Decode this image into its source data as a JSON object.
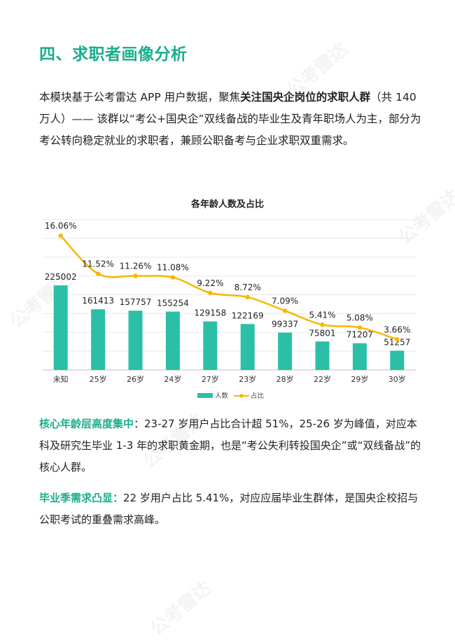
{
  "heading": "四、求职者画像分析",
  "intro": {
    "part1": "本模块基于公考雷达 APP 用户数据，聚焦",
    "bold": "关注国央企岗位的求职人群",
    "part2": "（共 140 万人）—— 该群以“考公+国央企”双线备战的毕业生及青年职场人为主，部分为考公转向稳定就业的求职者，兼顾公职备考与企业求职双重需求。"
  },
  "watermark": "公考雷达",
  "chart_data": {
    "type": "bar",
    "title": "各年龄人数及占比",
    "categories": [
      "未知",
      "25岁",
      "26岁",
      "24岁",
      "27岁",
      "23岁",
      "28岁",
      "22岁",
      "29岁",
      "30岁"
    ],
    "series": [
      {
        "name": "人数",
        "type": "bar",
        "color": "#2bbfa8",
        "values": [
          225002,
          161413,
          157757,
          155254,
          129158,
          122169,
          99337,
          75801,
          71207,
          51257
        ]
      },
      {
        "name": "占比",
        "type": "line",
        "color": "#f5b800",
        "values": [
          16.06,
          11.52,
          11.26,
          11.08,
          9.22,
          8.72,
          7.09,
          5.41,
          5.08,
          3.66
        ],
        "labels": [
          "16.06%",
          "11.52%",
          "11.26%",
          "11.08%",
          "9.22%",
          "8.72%",
          "7.09%",
          "5.41%",
          "5.08%",
          "3.66%"
        ]
      }
    ],
    "grid": true,
    "legend": "bottom"
  },
  "para1": {
    "lead": "核心年龄层高度集中",
    "text": "：23-27 岁用户占比合计超 51%，25-26 岁为峰值，对应本科及研究生毕业 1-3 年的求职黄金期，也是“考公失利转投国央企”或“双线备战”的核心人群。"
  },
  "para2": {
    "lead": "毕业季需求凸显：",
    "text": "22 岁用户占比 5.41%，对应应届毕业生群体，是国央企校招与公职考试的重叠需求高峰。"
  }
}
